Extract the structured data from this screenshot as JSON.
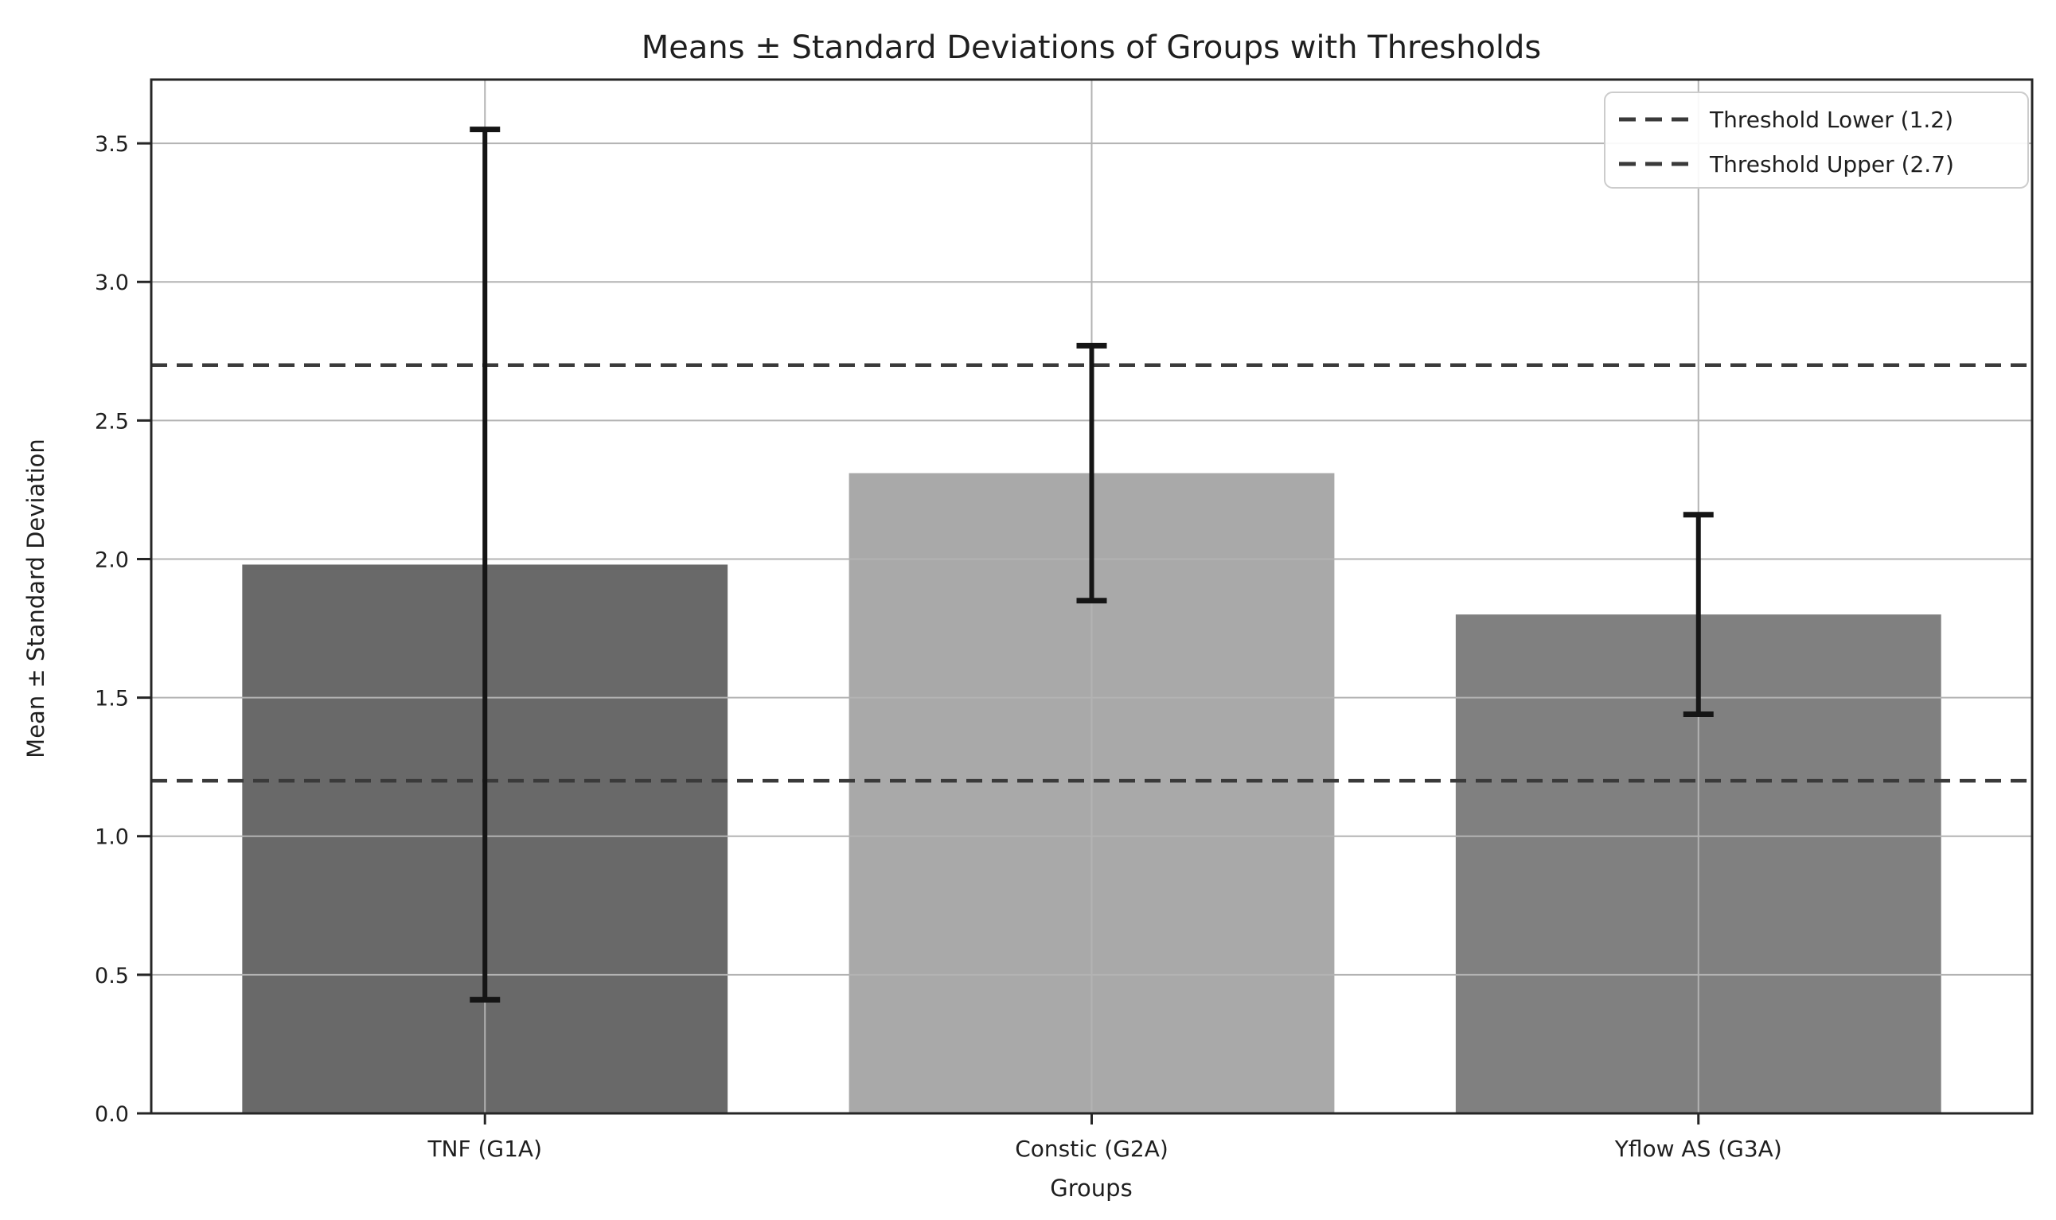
{
  "chart_data": {
    "type": "bar",
    "title": "Means ± Standard Deviations of Groups with Thresholds",
    "xlabel": "Groups",
    "ylabel": "Mean ± Standard Deviation",
    "categories": [
      "TNF (G1A)",
      "Constic (G2A)",
      "Yflow AS (G3A)"
    ],
    "series": [
      {
        "name": "Mean ± SD",
        "values": [
          1.98,
          2.31,
          1.8
        ],
        "errors": [
          1.57,
          0.46,
          0.36
        ]
      }
    ],
    "bar_colors": [
      "#696969",
      "#a9a9a9",
      "#808080"
    ],
    "error_color": "#151515",
    "ylim": [
      0,
      3.73
    ],
    "yticks": [
      0.0,
      0.5,
      1.0,
      1.5,
      2.0,
      2.5,
      3.0,
      3.5
    ],
    "grid": true,
    "grid_color": "#b3b3b3",
    "thresholds": [
      {
        "label": "Threshold Lower (1.2)",
        "value": 1.2,
        "color": "#3a3a3a",
        "style": "dashed"
      },
      {
        "label": "Threshold Upper (2.7)",
        "value": 2.7,
        "color": "#3a3a3a",
        "style": "dashed"
      }
    ],
    "legend": {
      "position": "upper-right",
      "entries": [
        "Threshold Lower (1.2)",
        "Threshold Upper (2.7)"
      ]
    }
  }
}
